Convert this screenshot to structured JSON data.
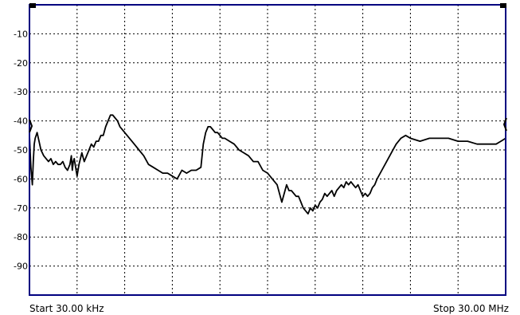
{
  "chart_data": {
    "type": "line",
    "xlabel_start": "Start 30.00 kHz",
    "xlabel_stop": "Stop 30.00 MHz",
    "x_divisions": 10,
    "ylim": [
      0,
      -100
    ],
    "y_ticks": [
      "-10",
      "-20",
      "-30",
      "-40",
      "-50",
      "-60",
      "-70",
      "-80",
      "-90"
    ],
    "grid": true,
    "colors": {
      "trace": "#000000",
      "frame": "#000080",
      "grid": "#000000"
    },
    "series": [
      {
        "x": [
          0,
          0.03,
          0.06,
          0.08,
          0.1,
          0.12,
          0.16,
          0.2,
          0.24,
          0.3,
          0.35,
          0.4,
          0.45,
          0.5,
          0.55,
          0.6,
          0.65,
          0.7,
          0.75,
          0.8,
          0.85,
          0.88,
          0.9,
          0.92,
          0.94,
          0.98,
          1.0,
          1.04,
          1.1,
          1.15,
          1.2,
          1.25,
          1.3,
          1.35,
          1.4,
          1.45,
          1.5,
          1.55,
          1.6,
          1.65,
          1.7,
          1.75,
          1.8,
          1.85,
          1.9,
          1.95,
          2.0,
          2.05,
          2.1,
          2.15,
          2.2,
          2.3,
          2.4,
          2.5,
          2.6,
          2.7,
          2.8,
          2.9,
          3.0,
          3.1,
          3.2,
          3.3,
          3.4,
          3.5,
          3.6,
          3.65,
          3.7,
          3.75,
          3.8,
          3.85,
          3.9,
          3.95,
          4.0,
          4.05,
          4.1,
          4.2,
          4.3,
          4.4,
          4.5,
          4.6,
          4.7,
          4.8,
          4.9,
          5.0,
          5.1,
          5.2,
          5.3,
          5.4,
          5.45,
          5.5,
          5.55,
          5.6,
          5.65,
          5.7,
          5.75,
          5.8,
          5.85,
          5.9,
          5.95,
          6.0,
          6.05,
          6.1,
          6.15,
          6.2,
          6.25,
          6.3,
          6.35,
          6.4,
          6.45,
          6.5,
          6.55,
          6.6,
          6.65,
          6.7,
          6.75,
          6.8,
          6.85,
          6.9,
          6.95,
          7.0,
          7.05,
          7.1,
          7.15,
          7.2,
          7.25,
          7.3,
          7.4,
          7.5,
          7.6,
          7.7,
          7.8,
          7.9,
          8.0,
          8.2,
          8.4,
          8.6,
          8.8,
          9.0,
          9.2,
          9.4,
          9.6,
          9.8,
          9.9,
          10.0
        ],
        "values": [
          -45,
          -56,
          -62,
          -54,
          -48,
          -46,
          -44,
          -47,
          -50,
          -52,
          -53,
          -54,
          -53,
          -55,
          -54,
          -55,
          -55,
          -54,
          -56,
          -57,
          -55,
          -52,
          -57,
          -54,
          -53,
          -57,
          -59,
          -55,
          -51,
          -54,
          -52,
          -50,
          -48,
          -49,
          -47,
          -47,
          -45,
          -45,
          -42,
          -40,
          -38,
          -38,
          -39,
          -40,
          -42,
          -43,
          -44,
          -45,
          -46,
          -47,
          -48,
          -50,
          -52,
          -55,
          -56,
          -57,
          -58,
          -58,
          -59,
          -60,
          -57,
          -58,
          -57,
          -57,
          -56,
          -48,
          -44,
          -42,
          -42,
          -43,
          -44,
          -44,
          -45,
          -46,
          -46,
          -47,
          -48,
          -50,
          -51,
          -52,
          -54,
          -54,
          -57,
          -58,
          -60,
          -62,
          -68,
          -62,
          -64,
          -64,
          -65,
          -66,
          -66,
          -68,
          -70,
          -71,
          -72,
          -70,
          -71,
          -69,
          -70,
          -68,
          -67,
          -65,
          -66,
          -65,
          -64,
          -66,
          -64,
          -63,
          -62,
          -63,
          -61,
          -62,
          -61,
          -62,
          -63,
          -62,
          -64,
          -66,
          -65,
          -66,
          -65,
          -63,
          -62,
          -60,
          -57,
          -54,
          -51,
          -48,
          -46,
          -45,
          -46,
          -47,
          -46,
          -46,
          -46,
          -47,
          -47,
          -48,
          -48,
          -48,
          -47,
          -46
        ]
      }
    ]
  }
}
